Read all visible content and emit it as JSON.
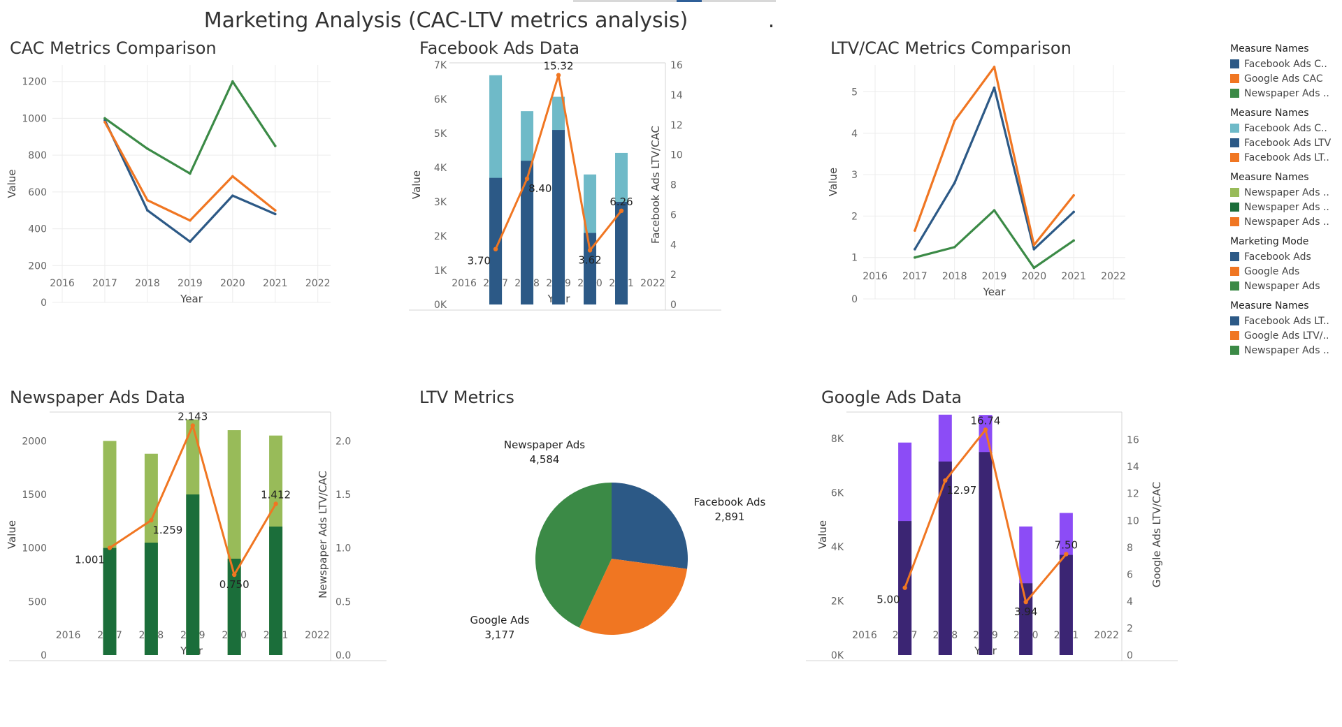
{
  "dashboard": {
    "title": "Marketing Analysis (CAC-LTV metrics analysis)            ."
  },
  "colors": {
    "facebook": "#2c5986",
    "google": "#f07622",
    "newspaper": "#3b8a46",
    "facebook_light": "#6fbac8",
    "newspaper_light": "#98bb59",
    "newspaper_dark": "#1b6e3a",
    "google_light": "#8c4cf6",
    "google_dark": "#3b2573"
  },
  "legend": [
    {
      "header": "Measure Names",
      "items": [
        {
          "label": "Facebook Ads C..",
          "color": "#2c5986"
        },
        {
          "label": "Google Ads CAC",
          "color": "#f07622"
        },
        {
          "label": "Newspaper Ads ..",
          "color": "#3b8a46"
        }
      ]
    },
    {
      "header": "Measure Names",
      "items": [
        {
          "label": "Facebook Ads C..",
          "color": "#6fbac8"
        },
        {
          "label": "Facebook Ads LTV",
          "color": "#2c5986"
        },
        {
          "label": "Facebook Ads LT..",
          "color": "#f07622"
        }
      ]
    },
    {
      "header": "Measure Names",
      "items": [
        {
          "label": "Newspaper Ads ..",
          "color": "#98bb59"
        },
        {
          "label": "Newspaper Ads ..",
          "color": "#1b6e3a"
        },
        {
          "label": "Newspaper Ads ..",
          "color": "#f07622"
        }
      ]
    },
    {
      "header": "Marketing Mode",
      "items": [
        {
          "label": "Facebook Ads",
          "color": "#2c5986"
        },
        {
          "label": "Google Ads",
          "color": "#f07622"
        },
        {
          "label": "Newspaper Ads",
          "color": "#3b8a46"
        }
      ]
    },
    {
      "header": "Measure Names",
      "items": [
        {
          "label": "Facebook Ads LT..",
          "color": "#2c5986"
        },
        {
          "label": "Google Ads LTV/..",
          "color": "#f07622"
        },
        {
          "label": "Newspaper Ads ..",
          "color": "#3b8a46"
        }
      ]
    }
  ],
  "chart_data": [
    {
      "id": "cac",
      "type": "line",
      "title": "CAC Metrics Comparison",
      "xlabel": "Year",
      "ylabel": "Value",
      "x_ticks": [
        "2016",
        "2017",
        "2018",
        "2019",
        "2020",
        "2021",
        "2022"
      ],
      "x_range": [
        2015.77,
        2022.3
      ],
      "y_ticks": [
        0,
        200,
        400,
        600,
        800,
        1000,
        1200
      ],
      "ylim": [
        0,
        1290
      ],
      "grid": true,
      "x": [
        2017,
        2018,
        2019,
        2020,
        2021
      ],
      "series": [
        {
          "name": "Facebook Ads CAC",
          "color": "#2c5986",
          "values": [
            990,
            500,
            330,
            580,
            480
          ]
        },
        {
          "name": "Google Ads CAC",
          "color": "#f07622",
          "values": [
            980,
            555,
            445,
            685,
            500
          ]
        },
        {
          "name": "Newspaper Ads CAC",
          "color": "#3b8a46",
          "values": [
            1000,
            835,
            700,
            1200,
            850
          ]
        }
      ]
    },
    {
      "id": "fb",
      "type": "bar",
      "title": "Facebook Ads Data",
      "xlabel": "Year",
      "ylabel": "Value",
      "y2label": "Facebook Ads LTV/CAC",
      "x_ticks": [
        "2016",
        "2017",
        "2018",
        "2019",
        "2020",
        "2021",
        "2022"
      ],
      "x_range": [
        2015.62,
        2022.4
      ],
      "y_ticks": [
        0,
        1000,
        2000,
        3000,
        4000,
        5000,
        6000,
        7000
      ],
      "y_tick_labels": [
        "0K",
        "1K",
        "2K",
        "3K",
        "4K",
        "5K",
        "6K",
        "7K"
      ],
      "ylim": [
        0,
        7000
      ],
      "y2_ticks": [
        0,
        2,
        4,
        6,
        8,
        10,
        12,
        14,
        16
      ],
      "y2lim": [
        0,
        16
      ],
      "grid": false,
      "x": [
        2017,
        2018,
        2019,
        2020,
        2021
      ],
      "bars_back": {
        "name": "Facebook Ads CAC",
        "color": "#6fbac8",
        "values": [
          6700,
          5650,
          6070,
          3800,
          4430
        ]
      },
      "bars_front": {
        "name": "Facebook Ads LTV",
        "color": "#2c5986",
        "values": [
          3700,
          4200,
          5100,
          2090,
          3000
        ]
      },
      "line": {
        "name": "Facebook Ads LTV/CAC",
        "color": "#f07622",
        "values": [
          3.7,
          8.4,
          15.32,
          3.62,
          6.26
        ],
        "labels": [
          "3.70",
          "8.40",
          "15.32",
          "3.62",
          "6.26"
        ]
      }
    },
    {
      "id": "ltvcac",
      "type": "line",
      "title": "LTV/CAC Metrics Comparison",
      "xlabel": "Year",
      "ylabel": "Value",
      "x_ticks": [
        "2016",
        "2017",
        "2018",
        "2019",
        "2020",
        "2021",
        "2022"
      ],
      "x_range": [
        2015.7,
        2022.3
      ],
      "y_ticks": [
        0,
        1,
        2,
        3,
        4,
        5
      ],
      "ylim": [
        0,
        5.65
      ],
      "grid": true,
      "x": [
        2017,
        2018,
        2019,
        2020,
        2021
      ],
      "series": [
        {
          "name": "Facebook Ads LTV/CAC",
          "color": "#2c5986",
          "values": [
            1.2,
            2.8,
            5.1,
            1.2,
            2.1
          ]
        },
        {
          "name": "Google Ads LTV/CAC",
          "color": "#f07622",
          "values": [
            1.65,
            4.3,
            5.6,
            1.3,
            2.5
          ]
        },
        {
          "name": "Newspaper Ads LTV/CAC",
          "color": "#3b8a46",
          "values": [
            1.0,
            1.25,
            2.14,
            0.75,
            1.41
          ]
        }
      ]
    },
    {
      "id": "np",
      "type": "bar",
      "title": "Newspaper Ads Data",
      "xlabel": "Year",
      "ylabel": "Value",
      "y2label": "Newspaper Ads LTV/CAC",
      "x_ticks": [
        "2016",
        "2017",
        "2018",
        "2019",
        "2020",
        "2021",
        "2022"
      ],
      "x_range": [
        2015.62,
        2022.32
      ],
      "y_ticks": [
        0,
        500,
        1000,
        1500,
        2000
      ],
      "ylim": [
        0,
        2250
      ],
      "y2_ticks": [
        0.0,
        0.5,
        1.0,
        1.5,
        2.0
      ],
      "y2_tick_labels": [
        "0.0",
        "0.5",
        "1.0",
        "1.5",
        "2.0"
      ],
      "y2lim": [
        0,
        2.25
      ],
      "grid": false,
      "x": [
        2017,
        2018,
        2019,
        2020,
        2021
      ],
      "bars_back": {
        "name": "Newspaper Ads CAC",
        "color": "#98bb59",
        "values": [
          2000,
          1880,
          2200,
          2100,
          2050
        ]
      },
      "bars_front": {
        "name": "Newspaper Ads LTV",
        "color": "#1b6e3a",
        "values": [
          1000,
          1050,
          1500,
          900,
          1200
        ]
      },
      "line": {
        "name": "Newspaper Ads LTV/CAC",
        "color": "#f07622",
        "values": [
          1.001,
          1.259,
          2.143,
          0.75,
          1.412
        ],
        "labels": [
          "1.001",
          "1.259",
          "2.143",
          "0.750",
          "1.412"
        ]
      }
    },
    {
      "id": "pie",
      "type": "pie",
      "title": "LTV Metrics",
      "slices": [
        {
          "name": "Facebook Ads",
          "value": 2891,
          "label": "2,891",
          "color": "#2c5986"
        },
        {
          "name": "Google Ads",
          "value": 3177,
          "label": "3,177",
          "color": "#f07622"
        },
        {
          "name": "Newspaper Ads",
          "value": 4584,
          "label": "4,584",
          "color": "#3b8a46"
        }
      ]
    },
    {
      "id": "gg",
      "type": "bar",
      "title": "Google Ads Data",
      "xlabel": "Year",
      "ylabel": "Value",
      "y2label": "Google Ads LTV/CAC",
      "x_ticks": [
        "2016",
        "2017",
        "2018",
        "2019",
        "2020",
        "2021",
        "2022"
      ],
      "x_range": [
        2015.62,
        2022.38
      ],
      "y_ticks": [
        0,
        2000,
        4000,
        6000,
        8000
      ],
      "y_tick_labels": [
        "0K",
        "2K",
        "4K",
        "6K",
        "8K"
      ],
      "ylim": [
        0,
        8900
      ],
      "y2_ticks": [
        0,
        2,
        4,
        6,
        8,
        10,
        12,
        14,
        16
      ],
      "y2lim": [
        0,
        17.9
      ],
      "grid": false,
      "x": [
        2017,
        2018,
        2019,
        2020,
        2021
      ],
      "bars_back": {
        "name": "Google Ads CAC",
        "color": "#8c4cf6",
        "values": [
          7850,
          8880,
          8870,
          4750,
          5250
        ]
      },
      "bars_front": {
        "name": "Google Ads LTV",
        "color": "#3b2573",
        "values": [
          4950,
          7150,
          7500,
          2650,
          3700
        ]
      },
      "line": {
        "name": "Google Ads LTV/CAC",
        "color": "#f07622",
        "values": [
          5.0,
          12.97,
          16.74,
          3.94,
          7.5
        ],
        "labels": [
          "5.00",
          "12.97",
          "16.74",
          "3.94",
          "7.50"
        ]
      }
    }
  ]
}
